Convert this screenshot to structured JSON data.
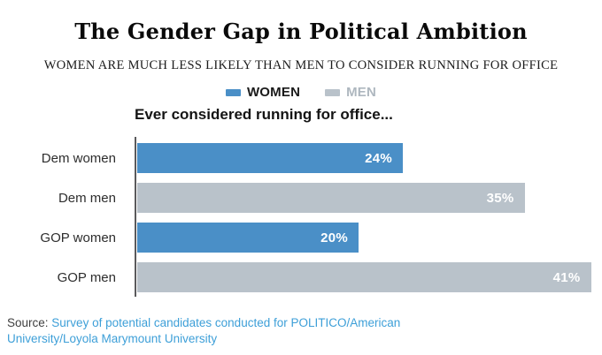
{
  "title": "The Gender Gap in Political Ambition",
  "subtitle": "WOMEN ARE MUCH LESS LIKELY THAN MEN TO CONSIDER RUNNING FOR OFFICE",
  "legend": {
    "items": [
      {
        "label": "WOMEN",
        "swatch_color": "#4a8fc7",
        "text_color": "#1a1a1a"
      },
      {
        "label": "MEN",
        "swatch_color": "#b9c2ca",
        "text_color": "#aeb7bf"
      }
    ]
  },
  "chart_heading": "Ever considered running for office...",
  "chart_data": {
    "type": "bar",
    "orientation": "horizontal",
    "title": "Ever considered running for office...",
    "categories": [
      "Dem women",
      "Dem men",
      "GOP women",
      "GOP men"
    ],
    "values": [
      24,
      35,
      20,
      41
    ],
    "value_labels": [
      "24%",
      "35%",
      "20%",
      "41%"
    ],
    "series_of_row": [
      "WOMEN",
      "MEN",
      "WOMEN",
      "MEN"
    ],
    "bar_colors": [
      "#4a8fc7",
      "#b9c2ca",
      "#4a8fc7",
      "#b9c2ca"
    ],
    "unit": "%",
    "xlim": [
      0,
      42
    ],
    "grid": false,
    "legend_position": "top",
    "axis_line_color": "#5a5a5c",
    "value_label_color": "#ffffff"
  },
  "source": {
    "label": "Source:",
    "link_line1": "Survey of potential candidates conducted for POLITICO/American",
    "link_line2": "University/Loyola Marymount University",
    "link_color": "#3d9fd8"
  }
}
